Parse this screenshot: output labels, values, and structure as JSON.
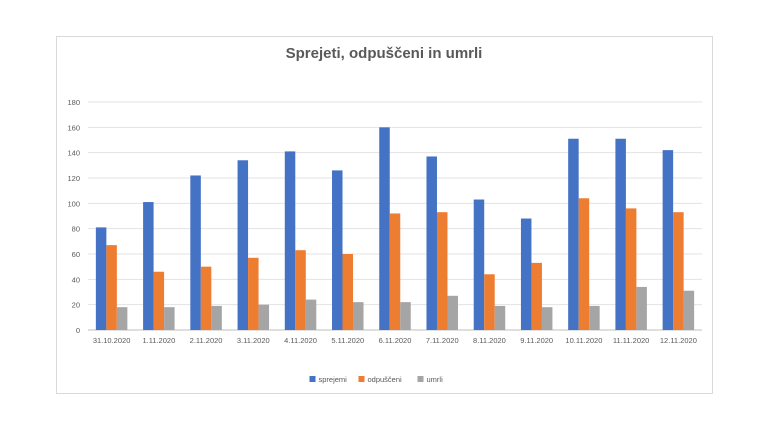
{
  "chart_data": {
    "type": "bar",
    "title": "Sprejeti, odpuščeni in umrli",
    "xlabel": "",
    "ylabel": "",
    "ylim": [
      0,
      180
    ],
    "yticks": [
      0,
      20,
      40,
      60,
      80,
      100,
      120,
      140,
      160,
      180
    ],
    "grid": true,
    "legend_position": "bottom",
    "categories": [
      "31.10.2020",
      "1.11.2020",
      "2.11.2020",
      "3.11.2020",
      "4.11.2020",
      "5.11.2020",
      "6.11.2020",
      "7.11.2020",
      "8.11.2020",
      "9.11.2020",
      "10.11.2020",
      "11.11.2020",
      "12.11.2020"
    ],
    "series": [
      {
        "name": "sprejemi",
        "color": "#4472C4",
        "values": [
          81,
          101,
          122,
          134,
          141,
          126,
          160,
          137,
          103,
          88,
          151,
          151,
          142
        ]
      },
      {
        "name": "odpuščeni",
        "color": "#ED7D31",
        "values": [
          67,
          46,
          50,
          57,
          63,
          60,
          92,
          93,
          44,
          53,
          104,
          96,
          93
        ]
      },
      {
        "name": "umrli",
        "color": "#A5A5A5",
        "values": [
          18,
          18,
          19,
          20,
          24,
          22,
          22,
          27,
          19,
          18,
          19,
          34,
          31
        ]
      }
    ]
  }
}
